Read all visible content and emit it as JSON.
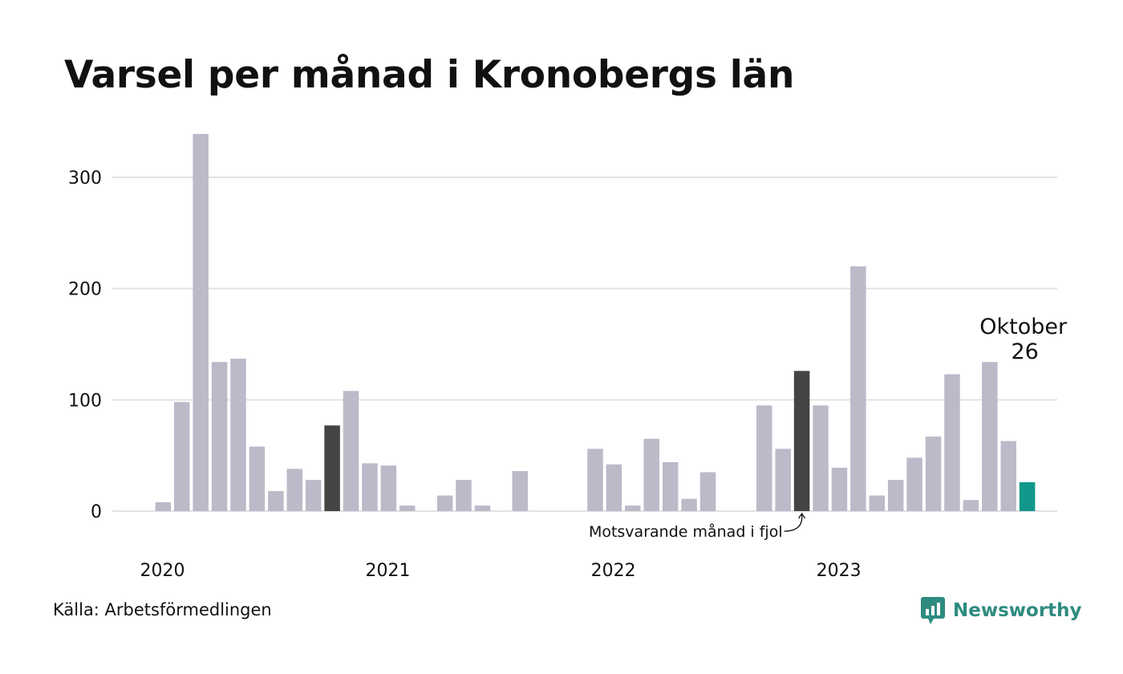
{
  "title": "Varsel per månad i Kronobergs län",
  "source": "Källa: Arbetsförmedlingen",
  "brand": {
    "name": "Newsworthy",
    "icon": "newsworthy-logo-icon",
    "color": "#2e8b80"
  },
  "colors": {
    "bar": "#bcbac9",
    "comparison": "#444444",
    "current": "#12978a",
    "grid": "#e2e2e2"
  },
  "chart_data": {
    "type": "bar",
    "title": "Varsel per månad i Kronobergs län",
    "xlabel": "",
    "ylabel": "",
    "ylim": [
      0,
      340
    ],
    "yticks": [
      0,
      100,
      200,
      300
    ],
    "year_labels": [
      {
        "label": "2020",
        "index": 0
      },
      {
        "label": "2021",
        "index": 12
      },
      {
        "label": "2022",
        "index": 24
      },
      {
        "label": "2023",
        "index": 36
      }
    ],
    "grid": true,
    "values": [
      0,
      0,
      8,
      98,
      339,
      134,
      137,
      58,
      18,
      38,
      28,
      77,
      108,
      43,
      41,
      5,
      0,
      14,
      28,
      5,
      0,
      36,
      0,
      0,
      0,
      56,
      42,
      5,
      65,
      44,
      11,
      35,
      0,
      0,
      95,
      56,
      126,
      95,
      39,
      220,
      14,
      28,
      48,
      67,
      123,
      10,
      134,
      63,
      26
    ],
    "comparison_indices": [
      11,
      36
    ],
    "current_index": 48,
    "annotations": {
      "comparison": "Motsvarande månad i fjol",
      "current_month": "Oktober",
      "current_value": "26"
    }
  }
}
